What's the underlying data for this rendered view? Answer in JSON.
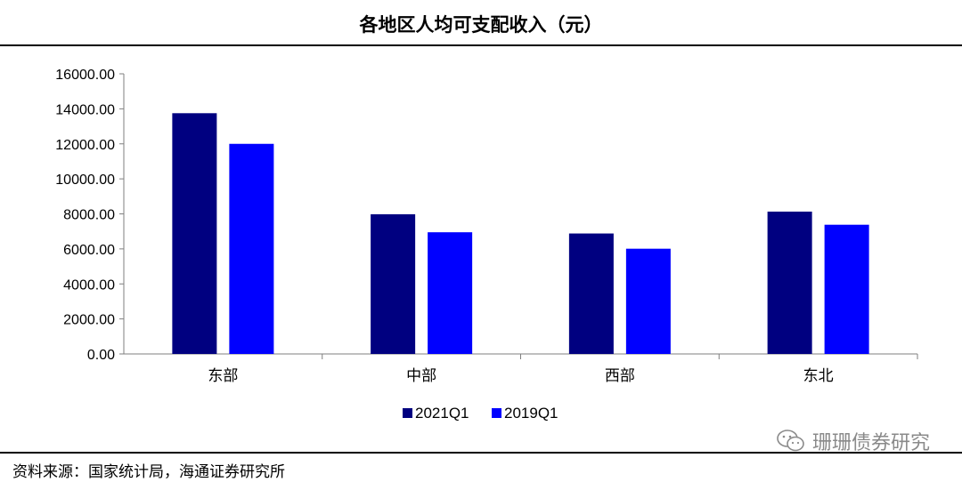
{
  "page": {
    "source_note": "资料来源：国家统计局，海通证券研究所",
    "watermark_text": "珊珊债券研究"
  },
  "chart_data": {
    "type": "bar",
    "title": "各地区人均可支配收入（元）",
    "categories": [
      "东部",
      "中部",
      "西部",
      "东北"
    ],
    "series": [
      {
        "name": "2021Q1",
        "values": [
          13750,
          7980,
          6880,
          8130
        ],
        "color": "#000080"
      },
      {
        "name": "2019Q1",
        "values": [
          12000,
          6950,
          6010,
          7380
        ],
        "color": "#0000ff"
      }
    ],
    "ylim": [
      0,
      16000
    ],
    "yticks": [
      0,
      2000,
      4000,
      6000,
      8000,
      10000,
      12000,
      14000,
      16000
    ],
    "ytick_labels": [
      "0.00",
      "2000.00",
      "4000.00",
      "6000.00",
      "8000.00",
      "10000.00",
      "12000.00",
      "14000.00",
      "16000.00"
    ],
    "xlabel": "",
    "ylabel": "",
    "grid": false,
    "legend_position": "bottom-center"
  }
}
